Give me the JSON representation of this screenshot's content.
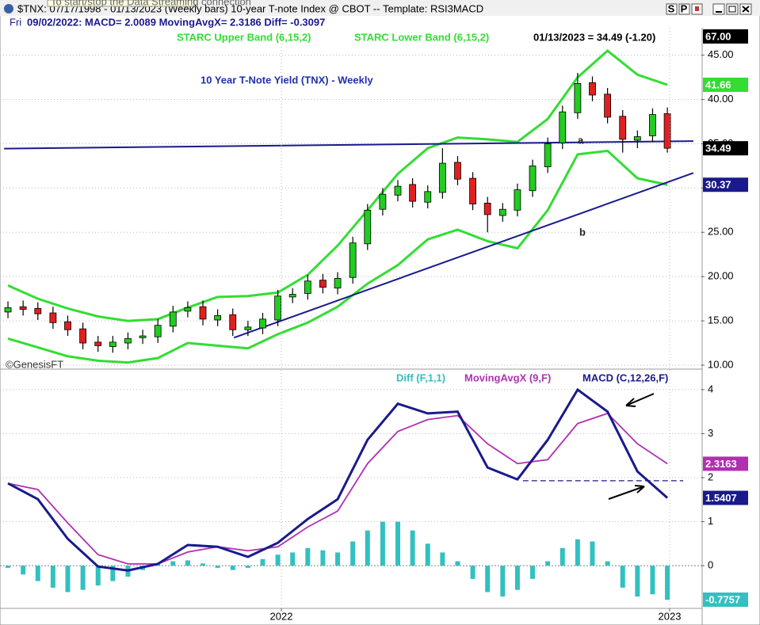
{
  "window": {
    "title": "$TNX: 07/17/1998 - 01/13/2023  (Weekly bars)   10-year T-note Index @ CBOT  --  Template: RSI3MACD",
    "tooltip": "To start/stop the Data Streaming connection",
    "buttons": [
      "S",
      "P"
    ],
    "day": "Fri",
    "status": "09/02/2022:   MACD= 2.0089   MovingAvgX= 2.3186   Diff= -0.3097"
  },
  "chart_data": [
    {
      "type": "candlestick",
      "title": "10 Year T-Note Yield (TNX) - Weekly",
      "last_label": "01/13/2023 = 34.49 (-1.20)",
      "source": "©GenesisFT",
      "xlim": [
        2021.2755,
        2023.0816
      ],
      "ylim": [
        9.64,
        48.1
      ],
      "yticks": [
        {
          "value": 10,
          "label": "10.00"
        },
        {
          "value": 15,
          "label": "15.00"
        },
        {
          "value": 20,
          "label": "20.00"
        },
        {
          "value": 25,
          "label": "25.00"
        },
        {
          "value": 30,
          "label": "30.00"
        },
        {
          "value": 35,
          "label": "35.00"
        },
        {
          "value": 40,
          "label": "40.00"
        },
        {
          "value": 45,
          "label": "45.00"
        }
      ],
      "grid": true,
      "up_color": "#22cc22",
      "down_color": "#e02020",
      "x": [
        2021.296,
        2021.335,
        2021.373,
        2021.412,
        2021.45,
        2021.489,
        2021.528,
        2021.566,
        2021.605,
        2021.643,
        2021.682,
        2021.721,
        2021.759,
        2021.798,
        2021.836,
        2021.875,
        2021.914,
        2021.952,
        2021.991,
        2022.029,
        2022.068,
        2022.107,
        2022.145,
        2022.184,
        2022.222,
        2022.261,
        2022.3,
        2022.338,
        2022.377,
        2022.415,
        2022.454,
        2022.493,
        2022.531,
        2022.57,
        2022.608,
        2022.647,
        2022.686,
        2022.724,
        2022.763,
        2022.801,
        2022.84,
        2022.879,
        2022.917,
        2022.956,
        2022.994
      ],
      "open": [
        16.0,
        16.6,
        16.4,
        15.9,
        14.9,
        14.1,
        12.6,
        12.1,
        12.5,
        13.1,
        13.2,
        14.4,
        16.1,
        16.6,
        15.1,
        15.7,
        14.0,
        14.2,
        15.1,
        17.7,
        18.1,
        19.6,
        18.7,
        19.9,
        23.7,
        27.6,
        29.2,
        30.4,
        28.4,
        29.5,
        32.9,
        31.1,
        28.3,
        26.9,
        27.5,
        29.7,
        32.4,
        35.1,
        38.5,
        41.9,
        40.6,
        38.1,
        35.4,
        35.9,
        38.4
      ],
      "high": [
        17.2,
        17.3,
        17.1,
        16.6,
        15.6,
        14.8,
        13.3,
        13.3,
        13.7,
        14.0,
        15.2,
        16.7,
        17.2,
        17.3,
        16.3,
        16.4,
        15.0,
        15.9,
        18.5,
        18.7,
        20.2,
        20.3,
        20.5,
        24.5,
        28.2,
        30.0,
        30.9,
        31.1,
        30.3,
        34.5,
        33.6,
        31.8,
        29.0,
        28.3,
        30.5,
        33.2,
        35.7,
        39.3,
        43.0,
        42.6,
        41.3,
        38.8,
        36.5,
        39.0,
        39.1
      ],
      "low": [
        15.3,
        15.6,
        15.1,
        14.1,
        13.3,
        11.8,
        11.5,
        11.4,
        11.8,
        12.4,
        12.5,
        13.7,
        15.4,
        14.5,
        14.4,
        13.3,
        13.3,
        13.5,
        14.4,
        17.0,
        17.4,
        18.1,
        18.0,
        19.2,
        23.0,
        26.9,
        28.5,
        27.8,
        27.7,
        28.8,
        30.3,
        27.5,
        25.0,
        26.2,
        26.8,
        29.0,
        31.7,
        34.4,
        37.8,
        39.8,
        37.3,
        34.0,
        34.5,
        35.2,
        34.0
      ],
      "close": [
        16.5,
        16.3,
        15.8,
        14.8,
        14.0,
        12.5,
        12.2,
        12.6,
        13.0,
        13.3,
        14.5,
        16.0,
        16.5,
        15.2,
        15.6,
        14.0,
        14.3,
        15.2,
        17.8,
        18.0,
        19.5,
        18.8,
        19.8,
        23.8,
        27.5,
        29.3,
        30.2,
        28.5,
        29.6,
        32.8,
        31.0,
        28.2,
        27.0,
        27.6,
        29.8,
        32.5,
        35.0,
        38.6,
        41.8,
        40.5,
        38.0,
        35.5,
        35.8,
        38.3,
        34.49
      ],
      "series": [
        {
          "name": "STARC Upper Band (6,15,2)",
          "color": "#33dd33",
          "x": [
            2021.296,
            2021.373,
            2021.45,
            2021.528,
            2021.605,
            2021.682,
            2021.759,
            2021.836,
            2021.914,
            2021.991,
            2022.068,
            2022.145,
            2022.222,
            2022.3,
            2022.377,
            2022.454,
            2022.531,
            2022.608,
            2022.686,
            2022.763,
            2022.84,
            2022.917,
            2022.994
          ],
          "values": [
            19,
            17.5,
            16.4,
            15.5,
            15,
            15.2,
            16.5,
            17.7,
            17.8,
            18.2,
            20.2,
            23.5,
            27.5,
            31.6,
            34.5,
            35.7,
            35.5,
            35.2,
            37.8,
            42.5,
            45.5,
            42.8,
            41.66
          ]
        },
        {
          "name": "STARC Lower Band (6,15,2)",
          "color": "#33dd33",
          "x": [
            2021.296,
            2021.373,
            2021.45,
            2021.528,
            2021.605,
            2021.682,
            2021.759,
            2021.836,
            2021.914,
            2021.991,
            2022.068,
            2022.145,
            2022.222,
            2022.3,
            2022.377,
            2022.454,
            2022.531,
            2022.608,
            2022.686,
            2022.763,
            2022.84,
            2022.917,
            2022.994
          ],
          "values": [
            13,
            12,
            11,
            10.5,
            10.3,
            10.8,
            12.5,
            12.2,
            11.9,
            13.5,
            14.8,
            16.6,
            19.2,
            21.3,
            24.2,
            25.3,
            24,
            23.2,
            27.5,
            33.8,
            34.2,
            31.1,
            30.37
          ]
        }
      ],
      "lines": [
        {
          "color": "#1a1a8c",
          "x": [
            2021.286,
            2023.061
          ],
          "y": [
            34.45,
            35.3
          ]
        },
        {
          "color": "#1a1a8c",
          "x": [
            2021.878,
            2023.061
          ],
          "y": [
            13.1,
            31.7
          ]
        }
      ],
      "annotations": [
        "a",
        "b"
      ],
      "price_labels": [
        {
          "value": 67,
          "label": "67.00",
          "color": "#000000"
        },
        {
          "value": 41.66,
          "label": "41.66",
          "color": "#33dd33"
        },
        {
          "value": 34.49,
          "label": "34.49",
          "color": "#000000"
        },
        {
          "value": 30.37,
          "label": "30.37",
          "color": "#1a1a8c"
        }
      ]
    },
    {
      "type": "macd",
      "xlim": [
        2021.2755,
        2023.0816
      ],
      "ylim": [
        -0.97,
        4.43
      ],
      "yticks": [
        0,
        1,
        2,
        3,
        4
      ],
      "xticks": [
        2022,
        2023
      ],
      "grid": true,
      "series": [
        {
          "name": "Diff (F,1,1)",
          "style": "histogram",
          "color": "#33c0c0",
          "x": [
            2021.296,
            2021.335,
            2021.373,
            2021.412,
            2021.45,
            2021.489,
            2021.528,
            2021.566,
            2021.605,
            2021.643,
            2021.682,
            2021.721,
            2021.759,
            2021.798,
            2021.836,
            2021.875,
            2021.914,
            2021.952,
            2021.991,
            2022.029,
            2022.068,
            2022.107,
            2022.145,
            2022.184,
            2022.222,
            2022.261,
            2022.3,
            2022.338,
            2022.377,
            2022.415,
            2022.454,
            2022.493,
            2022.531,
            2022.57,
            2022.608,
            2022.647,
            2022.686,
            2022.724,
            2022.763,
            2022.801,
            2022.84,
            2022.879,
            2022.917,
            2022.956,
            2022.994
          ],
          "values": [
            -0.05,
            -0.2,
            -0.35,
            -0.5,
            -0.6,
            -0.55,
            -0.45,
            -0.35,
            -0.25,
            -0.1,
            0.05,
            0.1,
            0.12,
            0.05,
            -0.05,
            -0.1,
            -0.05,
            0.15,
            0.25,
            0.3,
            0.4,
            0.35,
            0.3,
            0.55,
            0.8,
            1.0,
            1.0,
            0.8,
            0.5,
            0.3,
            0.1,
            -0.3,
            -0.6,
            -0.7,
            -0.55,
            -0.3,
            0.1,
            0.4,
            0.6,
            0.55,
            0.1,
            -0.5,
            -0.7,
            -0.65,
            -0.7757
          ]
        },
        {
          "name": "MovingAvgX (9,F)",
          "style": "line",
          "color": "#b030b0",
          "x": [
            2021.296,
            2021.373,
            2021.45,
            2021.528,
            2021.605,
            2021.682,
            2021.759,
            2021.836,
            2021.914,
            2021.991,
            2022.068,
            2022.145,
            2022.222,
            2022.3,
            2022.377,
            2022.454,
            2022.531,
            2022.608,
            2022.686,
            2022.763,
            2022.84,
            2022.917,
            2022.994
          ],
          "values": [
            1.87,
            1.73,
            0.97,
            0.25,
            0.04,
            0.04,
            0.31,
            0.43,
            0.34,
            0.43,
            0.88,
            1.24,
            2.32,
            3.05,
            3.32,
            3.41,
            2.77,
            2.32,
            2.41,
            3.23,
            3.46,
            2.77,
            2.3163
          ]
        },
        {
          "name": "MACD (C,12,26,F)",
          "style": "line",
          "color": "#1a1a8c",
          "x": [
            2021.296,
            2021.373,
            2021.45,
            2021.528,
            2021.605,
            2021.682,
            2021.759,
            2021.836,
            2021.914,
            2021.991,
            2022.068,
            2022.145,
            2022.222,
            2022.3,
            2022.377,
            2022.454,
            2022.531,
            2022.608,
            2022.686,
            2022.763,
            2022.84,
            2022.917,
            2022.994
          ],
          "values": [
            1.87,
            1.51,
            0.61,
            -0.02,
            -0.11,
            0.04,
            0.47,
            0.43,
            0.2,
            0.52,
            1.06,
            1.51,
            2.86,
            3.68,
            3.46,
            3.5,
            2.23,
            1.96,
            2.86,
            4.0,
            3.5,
            2.14,
            1.5407
          ]
        }
      ],
      "lines": [
        {
          "color": "#1a1a8c",
          "dash": true,
          "x": [
            2022.622,
            2023.035
          ],
          "y": [
            1.93,
            1.93
          ]
        }
      ],
      "price_labels": [
        {
          "value": 2.3163,
          "label": "2.3163",
          "color": "#b030b0"
        },
        {
          "value": 1.5407,
          "label": "1.5407",
          "color": "#1a1a8c"
        },
        {
          "value": -0.7757,
          "label": "-0.7757",
          "color": "#33c0c0"
        }
      ]
    }
  ]
}
